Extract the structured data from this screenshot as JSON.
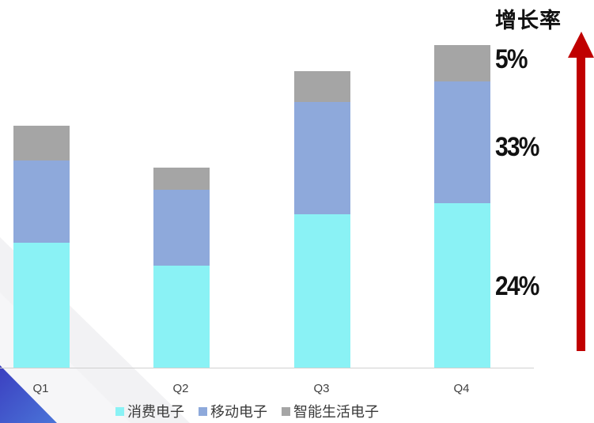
{
  "chart_data": {
    "type": "bar",
    "stacked": true,
    "title": "",
    "xlabel": "",
    "ylabel": "",
    "categories": [
      "Q1",
      "Q2",
      "Q3",
      "Q4"
    ],
    "series": [
      {
        "name": "消费电子",
        "color": "#8af2f5",
        "values": [
          158,
          129,
          194,
          208
        ]
      },
      {
        "name": "移动电子",
        "color": "#8ea9db",
        "values": [
          104,
          96,
          142,
          154
        ]
      },
      {
        "name": "智能生活电子",
        "color": "#a5a5a5",
        "values": [
          44,
          28,
          39,
          46
        ]
      }
    ],
    "value_unit_note": "relative bar heights (no y-axis shown)",
    "legend_position": "bottom",
    "grid": false,
    "annotations": {
      "title": "增长率",
      "growth_rates": [
        {
          "series": "智能生活电子",
          "label": "5%"
        },
        {
          "series": "移动电子",
          "label": "33%"
        },
        {
          "series": "消费电子",
          "label": "24%"
        }
      ],
      "arrow": {
        "direction": "up",
        "color": "#c00000"
      }
    }
  },
  "growth": {
    "title": "增长率",
    "labels": [
      "5%",
      "33%",
      "24%"
    ]
  },
  "legend": [
    "消费电子",
    "移动电子",
    "智能生活电子"
  ],
  "xticks": [
    "Q1",
    "Q2",
    "Q3",
    "Q4"
  ],
  "colors": {
    "consumer": "#8af2f5",
    "mobile": "#8ea9db",
    "smart_life": "#a5a5a5",
    "arrow": "#c00000",
    "deco_blue": "#3f55c8"
  }
}
